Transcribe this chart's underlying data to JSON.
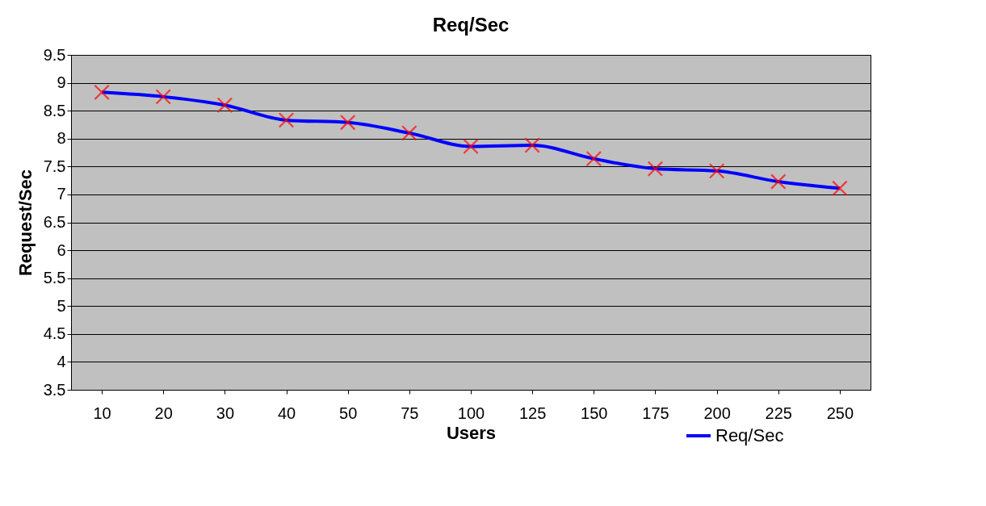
{
  "chart_data": {
    "type": "line",
    "title": "Req/Sec",
    "xlabel": "Users",
    "ylabel": "Request/Sec",
    "categories": [
      "10",
      "20",
      "30",
      "40",
      "50",
      "75",
      "100",
      "125",
      "150",
      "175",
      "200",
      "225",
      "250"
    ],
    "series": [
      {
        "name": "Req/Sec",
        "color": "#0000ff",
        "values": [
          8.83,
          8.75,
          8.6,
          8.33,
          8.29,
          8.1,
          7.86,
          7.88,
          7.64,
          7.46,
          7.42,
          7.23,
          7.11
        ]
      }
    ],
    "ylim": [
      3.5,
      9.5
    ],
    "yticks": [
      3.5,
      4,
      4.5,
      5,
      5.5,
      6,
      6.5,
      7,
      7.5,
      8,
      8.5,
      9,
      9.5
    ],
    "grid": "y",
    "legend": "bottom right",
    "marker": "cross",
    "line_style": "solid"
  }
}
